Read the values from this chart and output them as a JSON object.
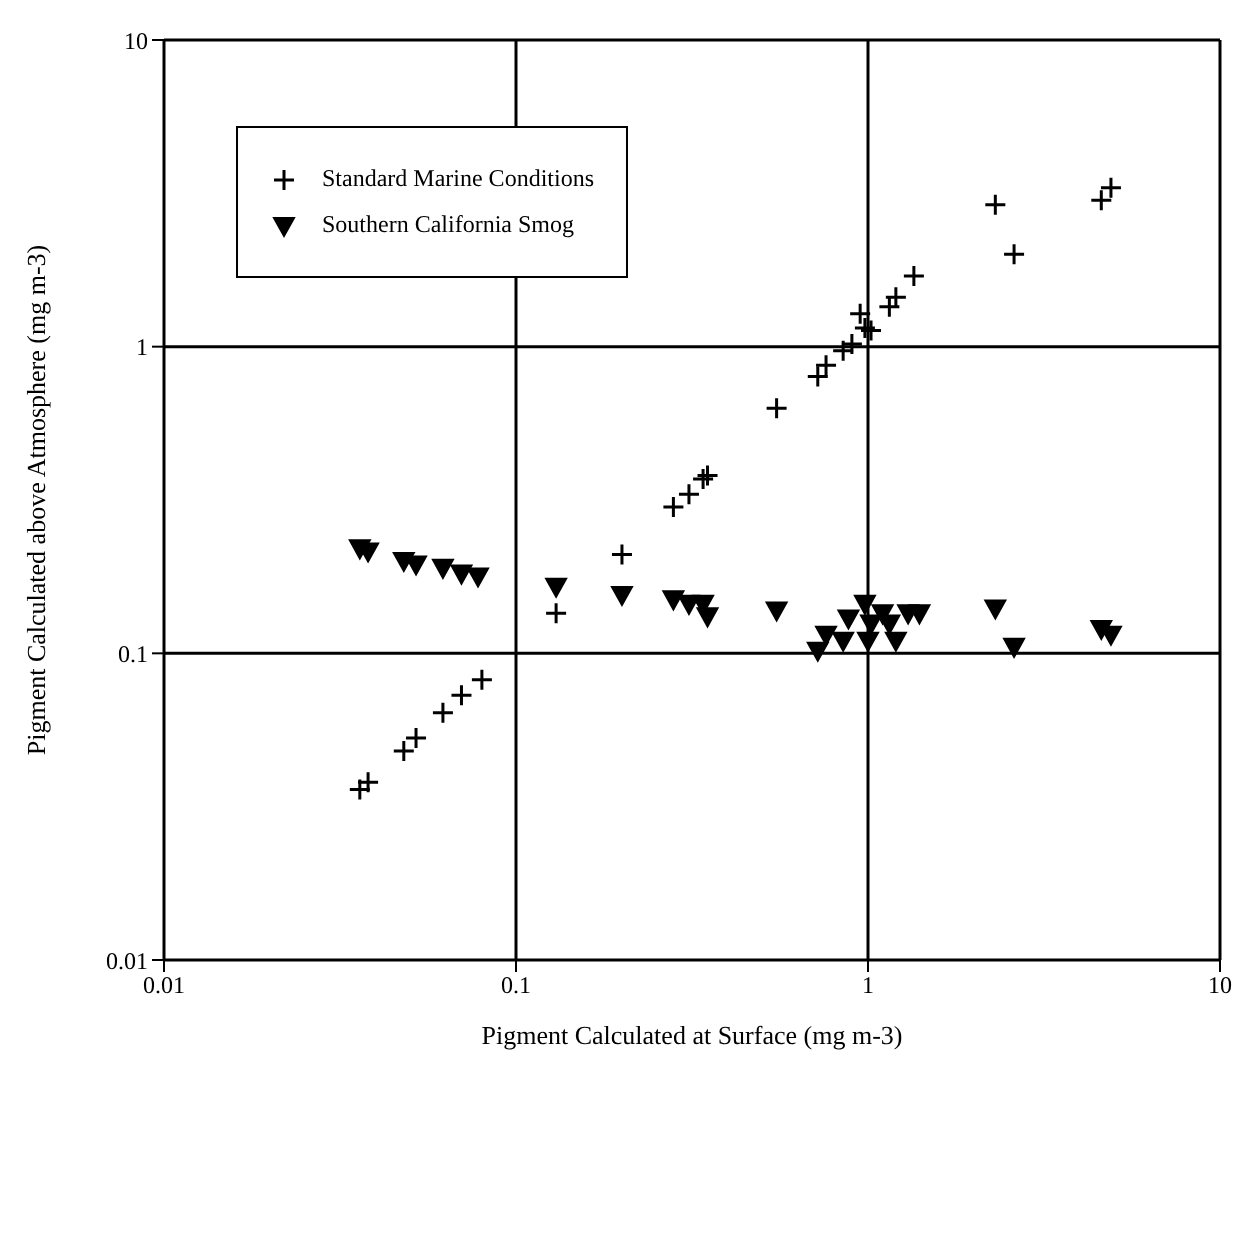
{
  "chart_data": {
    "type": "scatter",
    "xlabel": "Pigment Calculated at Surface (mg m-3)",
    "ylabel": "Pigment Calculated above Atmosphere (mg m-3)",
    "log": "xy",
    "xlim": [
      0.01,
      10
    ],
    "ylim": [
      0.01,
      10
    ],
    "xticks": [
      0.01,
      0.1,
      1,
      10
    ],
    "yticks": [
      0.01,
      0.1,
      1,
      10
    ],
    "grid": true,
    "legend": "top left",
    "series": [
      {
        "name": "Standard Marine Conditions",
        "color": "#000000",
        "marker": "cross",
        "x": [
          0.036,
          0.038,
          0.048,
          0.052,
          0.062,
          0.07,
          0.08,
          0.13,
          0.2,
          0.28,
          0.31,
          0.34,
          0.35,
          0.55,
          0.72,
          0.76,
          0.85,
          0.9,
          0.98,
          0.95,
          1.02,
          1.15,
          1.2,
          1.35,
          2.3,
          2.6,
          4.6,
          4.9
        ],
        "values": [
          0.036,
          0.038,
          0.048,
          0.053,
          0.064,
          0.073,
          0.082,
          0.135,
          0.21,
          0.3,
          0.33,
          0.37,
          0.38,
          0.63,
          0.8,
          0.87,
          0.97,
          1.02,
          1.15,
          1.28,
          1.13,
          1.35,
          1.45,
          1.7,
          2.9,
          2.0,
          3.0,
          3.3
        ]
      },
      {
        "name": "Southern California Smog",
        "color": "#000000",
        "marker": "triangle",
        "x": [
          0.036,
          0.038,
          0.048,
          0.052,
          0.062,
          0.07,
          0.078,
          0.13,
          0.2,
          0.28,
          0.31,
          0.34,
          0.35,
          0.55,
          0.72,
          0.76,
          0.85,
          0.88,
          0.98,
          1.0,
          1.02,
          1.1,
          1.15,
          1.2,
          1.3,
          1.4,
          2.3,
          2.6,
          4.6,
          4.9
        ],
        "values": [
          0.22,
          0.215,
          0.2,
          0.195,
          0.19,
          0.182,
          0.178,
          0.165,
          0.155,
          0.15,
          0.145,
          0.145,
          0.132,
          0.138,
          0.102,
          0.115,
          0.11,
          0.13,
          0.145,
          0.11,
          0.125,
          0.135,
          0.125,
          0.11,
          0.135,
          0.135,
          0.14,
          0.105,
          0.12,
          0.115
        ]
      }
    ]
  }
}
